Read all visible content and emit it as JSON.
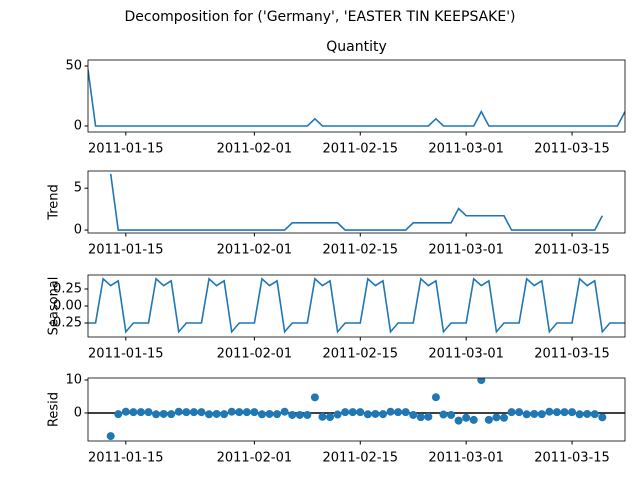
{
  "title": "Decomposition for ('Germany', 'EASTER TIN KEEPSAKE')",
  "chart_data": [
    {
      "type": "line",
      "title": "Quantity",
      "color": "#1f77b4",
      "x": [
        "2011-01-10",
        "2011-01-11",
        "2011-01-12",
        "2011-01-13",
        "2011-01-14",
        "2011-01-15",
        "2011-01-16",
        "2011-01-17",
        "2011-01-18",
        "2011-01-19",
        "2011-01-20",
        "2011-01-21",
        "2011-01-22",
        "2011-01-23",
        "2011-01-24",
        "2011-01-25",
        "2011-01-26",
        "2011-01-27",
        "2011-01-28",
        "2011-01-29",
        "2011-01-30",
        "2011-01-31",
        "2011-02-01",
        "2011-02-02",
        "2011-02-03",
        "2011-02-04",
        "2011-02-05",
        "2011-02-06",
        "2011-02-07",
        "2011-02-08",
        "2011-02-09",
        "2011-02-10",
        "2011-02-11",
        "2011-02-12",
        "2011-02-13",
        "2011-02-14",
        "2011-02-15",
        "2011-02-16",
        "2011-02-17",
        "2011-02-18",
        "2011-02-19",
        "2011-02-20",
        "2011-02-21",
        "2011-02-22",
        "2011-02-23",
        "2011-02-24",
        "2011-02-25",
        "2011-02-26",
        "2011-02-27",
        "2011-02-28",
        "2011-03-01",
        "2011-03-02",
        "2011-03-03",
        "2011-03-04",
        "2011-03-05",
        "2011-03-06",
        "2011-03-07",
        "2011-03-08",
        "2011-03-09",
        "2011-03-10",
        "2011-03-11",
        "2011-03-12",
        "2011-03-13",
        "2011-03-14",
        "2011-03-15",
        "2011-03-16",
        "2011-03-17",
        "2011-03-18",
        "2011-03-19",
        "2011-03-20",
        "2011-03-21",
        "2011-03-22"
      ],
      "values": [
        47,
        0,
        0,
        0,
        0,
        0,
        0,
        0,
        0,
        0,
        0,
        0,
        0,
        0,
        0,
        0,
        0,
        0,
        0,
        0,
        0,
        0,
        0,
        0,
        0,
        0,
        0,
        0,
        0,
        0,
        6,
        0,
        0,
        0,
        0,
        0,
        0,
        0,
        0,
        0,
        0,
        0,
        0,
        0,
        0,
        0,
        6,
        0,
        0,
        0,
        0,
        0,
        12,
        0,
        0,
        0,
        0,
        0,
        0,
        0,
        0,
        0,
        0,
        0,
        0,
        0,
        0,
        0,
        0,
        0,
        0,
        12
      ],
      "xlim": [
        "2011-01-10",
        "2011-03-22"
      ],
      "xticks": [
        "2011-01-15",
        "2011-02-01",
        "2011-02-15",
        "2011-03-01",
        "2011-03-15"
      ],
      "ylim": [
        -5,
        55
      ],
      "yticks": [
        0,
        50
      ]
    },
    {
      "type": "line",
      "ylabel": "Trend",
      "color": "#1f77b4",
      "x": [
        "2011-01-10",
        "2011-01-11",
        "2011-01-12",
        "2011-01-13",
        "2011-01-14",
        "2011-01-15",
        "2011-01-16",
        "2011-01-17",
        "2011-01-18",
        "2011-01-19",
        "2011-01-20",
        "2011-01-21",
        "2011-01-22",
        "2011-01-23",
        "2011-01-24",
        "2011-01-25",
        "2011-01-26",
        "2011-01-27",
        "2011-01-28",
        "2011-01-29",
        "2011-01-30",
        "2011-01-31",
        "2011-02-01",
        "2011-02-02",
        "2011-02-03",
        "2011-02-04",
        "2011-02-05",
        "2011-02-06",
        "2011-02-07",
        "2011-02-08",
        "2011-02-09",
        "2011-02-10",
        "2011-02-11",
        "2011-02-12",
        "2011-02-13",
        "2011-02-14",
        "2011-02-15",
        "2011-02-16",
        "2011-02-17",
        "2011-02-18",
        "2011-02-19",
        "2011-02-20",
        "2011-02-21",
        "2011-02-22",
        "2011-02-23",
        "2011-02-24",
        "2011-02-25",
        "2011-02-26",
        "2011-02-27",
        "2011-02-28",
        "2011-03-01",
        "2011-03-02",
        "2011-03-03",
        "2011-03-04",
        "2011-03-05",
        "2011-03-06",
        "2011-03-07",
        "2011-03-08",
        "2011-03-09",
        "2011-03-10",
        "2011-03-11",
        "2011-03-12",
        "2011-03-13",
        "2011-03-14",
        "2011-03-15",
        "2011-03-16",
        "2011-03-17",
        "2011-03-18",
        "2011-03-19",
        "2011-03-20",
        "2011-03-21",
        "2011-03-22"
      ],
      "values": [
        null,
        null,
        null,
        6.71,
        0,
        0,
        0,
        0,
        0,
        0,
        0,
        0,
        0,
        0,
        0,
        0,
        0,
        0,
        0,
        0,
        0,
        0,
        0,
        0,
        0,
        0,
        0,
        0.86,
        0.86,
        0.86,
        0.86,
        0.86,
        0.86,
        0.86,
        0,
        0,
        0,
        0,
        0,
        0,
        0,
        0,
        0,
        0.86,
        0.86,
        0.86,
        0.86,
        0.86,
        0.86,
        2.57,
        1.71,
        1.71,
        1.71,
        1.71,
        1.71,
        1.71,
        0,
        0,
        0,
        0,
        0,
        0,
        0,
        0,
        0,
        0,
        0,
        0,
        1.71,
        null,
        null,
        null
      ],
      "xlim": [
        "2011-01-10",
        "2011-03-22"
      ],
      "xticks": [
        "2011-01-15",
        "2011-02-01",
        "2011-02-15",
        "2011-03-01",
        "2011-03-15"
      ],
      "ylim": [
        -0.35,
        7.05
      ],
      "yticks": [
        0,
        5
      ]
    },
    {
      "type": "line",
      "ylabel": "Seasonal",
      "color": "#1f77b4",
      "x": [
        "2011-01-10",
        "2011-01-11",
        "2011-01-12",
        "2011-01-13",
        "2011-01-14",
        "2011-01-15",
        "2011-01-16",
        "2011-01-17",
        "2011-01-18",
        "2011-01-19",
        "2011-01-20",
        "2011-01-21",
        "2011-01-22",
        "2011-01-23",
        "2011-01-24",
        "2011-01-25",
        "2011-01-26",
        "2011-01-27",
        "2011-01-28",
        "2011-01-29",
        "2011-01-30",
        "2011-01-31",
        "2011-02-01",
        "2011-02-02",
        "2011-02-03",
        "2011-02-04",
        "2011-02-05",
        "2011-02-06",
        "2011-02-07",
        "2011-02-08",
        "2011-02-09",
        "2011-02-10",
        "2011-02-11",
        "2011-02-12",
        "2011-02-13",
        "2011-02-14",
        "2011-02-15",
        "2011-02-16",
        "2011-02-17",
        "2011-02-18",
        "2011-02-19",
        "2011-02-20",
        "2011-02-21",
        "2011-02-22",
        "2011-02-23",
        "2011-02-24",
        "2011-02-25",
        "2011-02-26",
        "2011-02-27",
        "2011-02-28",
        "2011-03-01",
        "2011-03-02",
        "2011-03-03",
        "2011-03-04",
        "2011-03-05",
        "2011-03-06",
        "2011-03-07",
        "2011-03-08",
        "2011-03-09",
        "2011-03-10",
        "2011-03-11",
        "2011-03-12",
        "2011-03-13",
        "2011-03-14",
        "2011-03-15",
        "2011-03-16",
        "2011-03-17",
        "2011-03-18",
        "2011-03-19",
        "2011-03-20",
        "2011-03-21",
        "2011-03-22"
      ],
      "values": [
        -0.25,
        -0.25,
        0.4,
        0.3,
        0.37,
        -0.38,
        -0.25,
        -0.25,
        -0.25,
        0.4,
        0.3,
        0.37,
        -0.38,
        -0.25,
        -0.25,
        -0.25,
        0.4,
        0.3,
        0.37,
        -0.38,
        -0.25,
        -0.25,
        -0.25,
        0.4,
        0.3,
        0.37,
        -0.38,
        -0.25,
        -0.25,
        -0.25,
        0.4,
        0.3,
        0.37,
        -0.38,
        -0.25,
        -0.25,
        -0.25,
        0.4,
        0.3,
        0.37,
        -0.38,
        -0.25,
        -0.25,
        -0.25,
        0.4,
        0.3,
        0.37,
        -0.38,
        -0.25,
        -0.25,
        -0.25,
        0.4,
        0.3,
        0.37,
        -0.38,
        -0.25,
        -0.25,
        -0.25,
        0.4,
        0.3,
        0.37,
        -0.38,
        -0.25,
        -0.25,
        -0.25,
        0.4,
        0.3,
        0.37,
        -0.38,
        -0.25,
        -0.25,
        -0.25
      ],
      "xlim": [
        "2011-01-10",
        "2011-03-22"
      ],
      "xticks": [
        "2011-01-15",
        "2011-02-01",
        "2011-02-15",
        "2011-03-01",
        "2011-03-15"
      ],
      "ylim": [
        -0.456,
        0.456
      ],
      "yticks": [
        {
          "value": 0.25,
          "label": "0.25"
        },
        {
          "value": 0,
          "label": "0.00"
        },
        {
          "value": -0.25,
          "label": "-0.25"
        }
      ]
    },
    {
      "type": "scatter",
      "ylabel": "Resid",
      "color": "#1f77b4",
      "axhline": 0,
      "x": [
        "2011-01-10",
        "2011-01-11",
        "2011-01-12",
        "2011-01-13",
        "2011-01-14",
        "2011-01-15",
        "2011-01-16",
        "2011-01-17",
        "2011-01-18",
        "2011-01-19",
        "2011-01-20",
        "2011-01-21",
        "2011-01-22",
        "2011-01-23",
        "2011-01-24",
        "2011-01-25",
        "2011-01-26",
        "2011-01-27",
        "2011-01-28",
        "2011-01-29",
        "2011-01-30",
        "2011-01-31",
        "2011-02-01",
        "2011-02-02",
        "2011-02-03",
        "2011-02-04",
        "2011-02-05",
        "2011-02-06",
        "2011-02-07",
        "2011-02-08",
        "2011-02-09",
        "2011-02-10",
        "2011-02-11",
        "2011-02-12",
        "2011-02-13",
        "2011-02-14",
        "2011-02-15",
        "2011-02-16",
        "2011-02-17",
        "2011-02-18",
        "2011-02-19",
        "2011-02-20",
        "2011-02-21",
        "2011-02-22",
        "2011-02-23",
        "2011-02-24",
        "2011-02-25",
        "2011-02-26",
        "2011-02-27",
        "2011-02-28",
        "2011-03-01",
        "2011-03-02",
        "2011-03-03",
        "2011-03-04",
        "2011-03-05",
        "2011-03-06",
        "2011-03-07",
        "2011-03-08",
        "2011-03-09",
        "2011-03-10",
        "2011-03-11",
        "2011-03-12",
        "2011-03-13",
        "2011-03-14",
        "2011-03-15",
        "2011-03-16",
        "2011-03-17",
        "2011-03-18",
        "2011-03-19",
        "2011-03-20",
        "2011-03-21",
        "2011-03-22"
      ],
      "values": [
        null,
        null,
        null,
        -7.01,
        -0.37,
        0.38,
        0.25,
        0.25,
        0.25,
        -0.4,
        -0.3,
        -0.37,
        0.38,
        0.25,
        0.25,
        0.25,
        -0.4,
        -0.3,
        -0.37,
        0.38,
        0.25,
        0.25,
        0.25,
        -0.4,
        -0.3,
        -0.37,
        0.38,
        -0.61,
        -0.61,
        -0.61,
        4.74,
        -1.16,
        -1.23,
        -0.48,
        0.25,
        0.25,
        0.25,
        -0.4,
        -0.3,
        -0.37,
        0.38,
        0.25,
        0.25,
        -0.61,
        -1.26,
        -1.16,
        4.77,
        -0.48,
        -0.61,
        -2.32,
        -1.46,
        -2.11,
        9.99,
        -2.08,
        -1.33,
        -1.46,
        0.25,
        0.25,
        -0.4,
        -0.3,
        -0.37,
        0.38,
        0.25,
        0.25,
        0.25,
        -0.4,
        -0.3,
        -0.37,
        -1.33,
        null,
        null,
        null
      ],
      "xlim": [
        "2011-01-10",
        "2011-03-22"
      ],
      "xticks": [
        "2011-01-15",
        "2011-02-01",
        "2011-02-15",
        "2011-03-01",
        "2011-03-15"
      ],
      "ylim": [
        -8.5,
        10.6
      ],
      "yticks": [
        0,
        10
      ]
    }
  ]
}
